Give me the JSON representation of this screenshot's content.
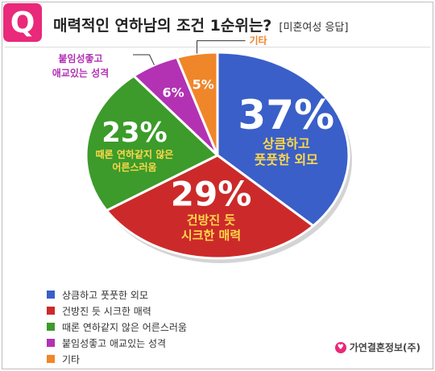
{
  "header": {
    "badge": "Q",
    "title": "매력적인 연하남의 조건 1순위는?",
    "subtitle": "[미혼여성 응답]"
  },
  "chart_data": {
    "type": "pie",
    "categories": [
      "상큼하고 풋풋한 외모",
      "건방진 듯 시크한 매력",
      "때론 연하같지 않은 어른스러움",
      "붙임성좋고 애교있는 성격",
      "기타"
    ],
    "values": [
      37,
      29,
      23,
      6,
      5
    ],
    "value_labels": [
      "37%",
      "29%",
      "23%",
      "6%",
      "5%"
    ],
    "slice_labels": [
      [
        "상큼하고",
        "풋풋한 외모"
      ],
      [
        "건방진 듯",
        "시크한 매력"
      ],
      [
        "때론 연하같지 않은",
        "어른스러움"
      ],
      [
        "붙임성좋고",
        "애교있는 성격"
      ],
      [
        "기타"
      ]
    ],
    "colors": [
      "#3a5fc9",
      "#cc2a2a",
      "#3c9b2b",
      "#b232b3",
      "#f0862a"
    ],
    "legend": "bottom-left"
  },
  "source": {
    "icon": "couple-icon",
    "text": "가연결혼정보(주)"
  }
}
